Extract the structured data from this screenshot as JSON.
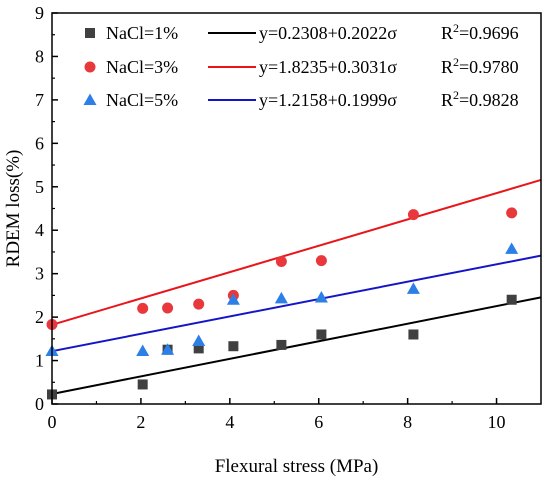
{
  "chart_data": {
    "type": "scatter",
    "xlabel": "Flexural stress (MPa)",
    "ylabel": "RDEM loss(%)",
    "xlim": [
      0,
      11
    ],
    "ylim": [
      0,
      9
    ],
    "xticks": [
      0,
      2,
      4,
      6,
      8,
      10
    ],
    "yticks": [
      0,
      1,
      2,
      3,
      4,
      5,
      6,
      7,
      8,
      9
    ],
    "grid": false,
    "legend_position": "top-left",
    "series": [
      {
        "name": "NaCl=1%",
        "marker": "square",
        "marker_color": "#404040",
        "line_color": "#000000",
        "x": [
          0,
          2.04,
          2.6,
          3.3,
          4.08,
          5.16,
          6.06,
          8.13,
          10.34
        ],
        "y": [
          0.22,
          0.45,
          1.25,
          1.28,
          1.33,
          1.36,
          1.6,
          1.6,
          2.4
        ],
        "fit": {
          "intercept": 0.2308,
          "slope": 0.2022,
          "equation": "y=0.2308+0.2022σ",
          "r2_label": "R",
          "r2_value": "=0.9696"
        }
      },
      {
        "name": "NaCl=3%",
        "marker": "circle",
        "marker_color": "#e8383c",
        "line_color": "#e8161b",
        "x": [
          0,
          2.04,
          2.6,
          3.3,
          4.08,
          5.16,
          6.06,
          8.13,
          10.34
        ],
        "y": [
          1.83,
          2.2,
          2.21,
          2.3,
          2.5,
          3.28,
          3.3,
          4.36,
          4.4
        ],
        "fit": {
          "intercept": 1.8235,
          "slope": 0.3031,
          "equation": "y=1.8235+0.3031σ",
          "r2_label": "R",
          "r2_value": "=0.9780"
        }
      },
      {
        "name": "NaCl=5%",
        "marker": "triangle",
        "marker_color": "#2b7fe6",
        "line_color": "#1515c8",
        "x": [
          0,
          2.04,
          2.6,
          3.3,
          4.08,
          5.16,
          6.06,
          8.13,
          10.34
        ],
        "y": [
          1.22,
          1.22,
          1.25,
          1.45,
          2.4,
          2.43,
          2.45,
          2.65,
          3.57
        ],
        "fit": {
          "intercept": 1.2158,
          "slope": 0.1999,
          "equation": "y=1.2158+0.1999σ",
          "r2_label": "R",
          "r2_value": "=0.9828"
        }
      }
    ],
    "r2_superscript": "2"
  }
}
